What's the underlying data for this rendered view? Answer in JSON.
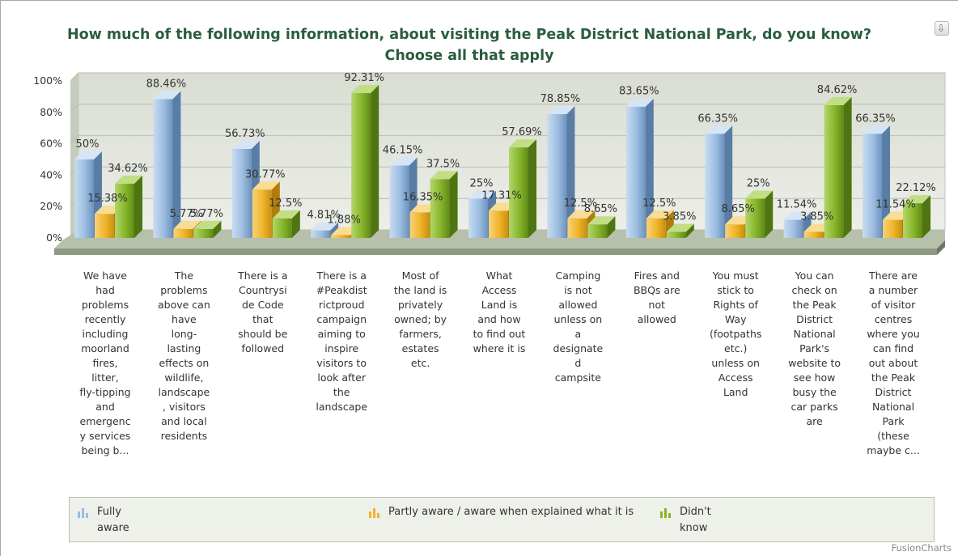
{
  "chart_data": {
    "type": "bar",
    "title": "How much of the following information, about visiting the Peak District National Park, do you know? Choose all that apply",
    "ylim": [
      0,
      100
    ],
    "yticks": [
      "0%",
      "20%",
      "40%",
      "60%",
      "80%",
      "100%"
    ],
    "grid": true,
    "legend_position": "bottom",
    "categories": [
      "We have had problems recently including moorland fires, litter, fly-tipping and emergency services being b...",
      "The problems above can have long-lasting effects on wildlife, landscape, visitors and local residents",
      "There is a Countryside Code that should be followed",
      "There is a #Peakdistrictproud campaign aiming to inspire visitors to look after the landscape",
      "Most of the land is privately owned; by farmers, estates etc.",
      "What Access Land is and how to find out where it is",
      "Camping is not allowed unless on a designated campsite",
      "Fires and BBQs are not allowed",
      "You must stick to Rights of Way (footpaths etc.) unless on Access Land",
      "You can check on the Peak District National Park's website to see how busy the car parks are",
      "There are a number of visitor centres where you can find out about the Peak District National Park (these maybe c..."
    ],
    "category_lines": [
      [
        "We have",
        "had",
        "problems",
        "recently",
        "including",
        "moorland",
        "fires,",
        "litter,",
        "fly-tipping",
        "and",
        "emergenc",
        "y services",
        "being b..."
      ],
      [
        "The",
        "problems",
        "above can",
        "have",
        "long-",
        "lasting",
        "effects on",
        "wildlife,",
        "landscape",
        ", visitors",
        "and local",
        "residents"
      ],
      [
        "There is a",
        "Countrysi",
        "de Code",
        "that",
        "should be",
        "followed"
      ],
      [
        "There is a",
        "#Peakdist",
        "rictproud",
        "campaign",
        "aiming to",
        "inspire",
        "visitors to",
        "look after",
        "the",
        "landscape"
      ],
      [
        "Most of",
        "the land is",
        "privately",
        "owned; by",
        "farmers,",
        "estates",
        "etc."
      ],
      [
        "What",
        "Access",
        "Land is",
        "and how",
        "to find out",
        "where it is"
      ],
      [
        "Camping",
        "is not",
        "allowed",
        "unless on",
        "a",
        "designate",
        "d",
        "campsite"
      ],
      [
        "Fires and",
        "BBQs are",
        "not",
        "allowed"
      ],
      [
        "You must",
        "stick to",
        "Rights of",
        "Way",
        "(footpaths",
        "etc.)",
        "unless on",
        "Access",
        "Land"
      ],
      [
        "You can",
        "check on",
        "the Peak",
        "District",
        "National",
        "Park's",
        "website to",
        "see how",
        "busy the",
        "car parks",
        "are"
      ],
      [
        "There are",
        "a number",
        "of visitor",
        "centres",
        "where you",
        "can find",
        "out about",
        "the Peak",
        "District",
        "National",
        "Park",
        "(these",
        "maybe c..."
      ]
    ],
    "series": [
      {
        "name": "Fully aware",
        "color": "#9cbde0",
        "values": [
          50,
          88.46,
          56.73,
          4.81,
          46.15,
          25,
          78.85,
          83.65,
          66.35,
          11.54,
          66.35
        ],
        "labels": [
          "50%",
          "88.46%",
          "56.73%",
          "4.81%",
          "46.15%",
          "25%",
          "78.85%",
          "83.65%",
          "66.35%",
          "11.54%",
          "66.35%"
        ]
      },
      {
        "name": "Partly aware / aware when explained what it is",
        "color": "#f0b429",
        "values": [
          15.38,
          5.77,
          30.77,
          1.88,
          16.35,
          17.31,
          12.5,
          12.5,
          8.65,
          3.85,
          11.54
        ],
        "labels": [
          "15.38%",
          "5.77%",
          "30.77%",
          "1.88%",
          "16.35%",
          "17.31%",
          "12.5%",
          "12.5%",
          "8.65%",
          "3.85%",
          "11.54%"
        ]
      },
      {
        "name": "Didn't know",
        "color": "#86b52a",
        "values": [
          34.62,
          5.77,
          12.5,
          92.31,
          37.5,
          57.69,
          8.65,
          3.85,
          25,
          84.62,
          22.12
        ],
        "labels": [
          "34.62%",
          "5.77%",
          "12.5%",
          "92.31%",
          "37.5%",
          "57.69%",
          "8.65%",
          "3.85%",
          "25%",
          "84.62%",
          "22.12%"
        ]
      }
    ],
    "legend": [
      {
        "label": "Fully aware",
        "icon": "bar-chart-icon",
        "color": "#9cbde0"
      },
      {
        "label": "Partly aware / aware when explained what it is",
        "icon": "bar-chart-icon",
        "color": "#f0b429"
      },
      {
        "label": "Didn't know",
        "icon": "bar-chart-icon",
        "color": "#86b52a"
      }
    ]
  },
  "branding": "FusionCharts",
  "export_icon": "download-icon",
  "colors": {
    "title": "#2a5d3e",
    "plot_back": "#dfe3d8",
    "floor": "#a9b39b"
  }
}
